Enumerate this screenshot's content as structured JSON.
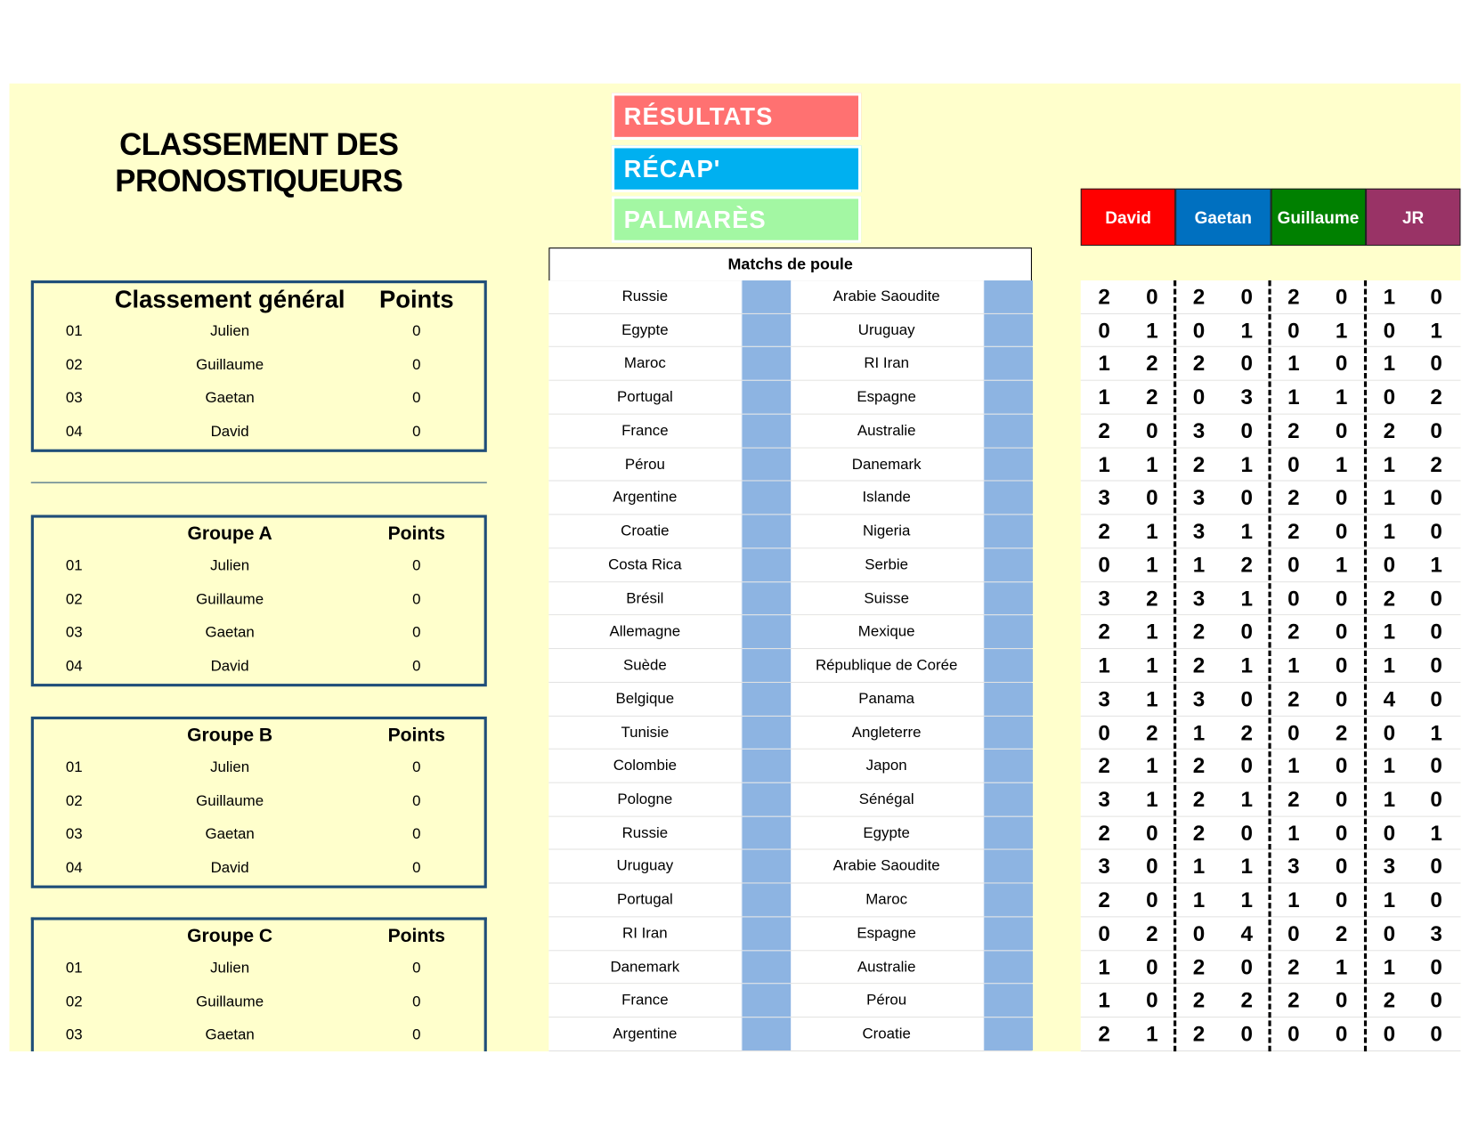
{
  "title": {
    "line1": "CLASSEMENT DES",
    "line2": "PRONOSTIQUEURS"
  },
  "nav": [
    {
      "label": "RÉSULTATS",
      "color": "#FF7171"
    },
    {
      "label": "RÉCAP'",
      "color": "#00B0F0"
    },
    {
      "label": "PALMARÈS",
      "color": "#A3F7A3"
    }
  ],
  "rankings": [
    {
      "title": "Classement général",
      "points_label": "Points",
      "rows": [
        {
          "rank": "01",
          "name": "Julien",
          "points": "0"
        },
        {
          "rank": "02",
          "name": "Guillaume",
          "points": "0"
        },
        {
          "rank": "03",
          "name": "Gaetan",
          "points": "0"
        },
        {
          "rank": "04",
          "name": "David",
          "points": "0"
        }
      ]
    },
    {
      "title": "Groupe A",
      "points_label": "Points",
      "rows": [
        {
          "rank": "01",
          "name": "Julien",
          "points": "0"
        },
        {
          "rank": "02",
          "name": "Guillaume",
          "points": "0"
        },
        {
          "rank": "03",
          "name": "Gaetan",
          "points": "0"
        },
        {
          "rank": "04",
          "name": "David",
          "points": "0"
        }
      ]
    },
    {
      "title": "Groupe B",
      "points_label": "Points",
      "rows": [
        {
          "rank": "01",
          "name": "Julien",
          "points": "0"
        },
        {
          "rank": "02",
          "name": "Guillaume",
          "points": "0"
        },
        {
          "rank": "03",
          "name": "Gaetan",
          "points": "0"
        },
        {
          "rank": "04",
          "name": "David",
          "points": "0"
        }
      ]
    },
    {
      "title": "Groupe C",
      "points_label": "Points",
      "rows": [
        {
          "rank": "01",
          "name": "Julien",
          "points": "0"
        },
        {
          "rank": "02",
          "name": "Guillaume",
          "points": "0"
        },
        {
          "rank": "03",
          "name": "Gaetan",
          "points": "0"
        }
      ]
    }
  ],
  "matches_header": "Matchs de poule",
  "players": [
    {
      "name": "David",
      "color": "#FF0000"
    },
    {
      "name": "Gaetan",
      "color": "#0070C0"
    },
    {
      "name": "Guillaume",
      "color": "#008000"
    },
    {
      "name": "JR",
      "color": "#993366"
    }
  ],
  "matches": [
    {
      "home": "Russie",
      "away": "Arabie Saoudite",
      "predictions": [
        [
          2,
          0
        ],
        [
          2,
          0
        ],
        [
          2,
          0
        ],
        [
          1,
          0
        ]
      ]
    },
    {
      "home": "Egypte",
      "away": "Uruguay",
      "predictions": [
        [
          0,
          1
        ],
        [
          0,
          1
        ],
        [
          0,
          1
        ],
        [
          0,
          1
        ]
      ]
    },
    {
      "home": "Maroc",
      "away": "RI Iran",
      "predictions": [
        [
          1,
          2
        ],
        [
          2,
          0
        ],
        [
          1,
          0
        ],
        [
          1,
          0
        ]
      ]
    },
    {
      "home": "Portugal",
      "away": "Espagne",
      "predictions": [
        [
          1,
          2
        ],
        [
          0,
          3
        ],
        [
          1,
          1
        ],
        [
          0,
          2
        ]
      ]
    },
    {
      "home": "France",
      "away": "Australie",
      "predictions": [
        [
          2,
          0
        ],
        [
          3,
          0
        ],
        [
          2,
          0
        ],
        [
          2,
          0
        ]
      ]
    },
    {
      "home": "Pérou",
      "away": "Danemark",
      "predictions": [
        [
          1,
          1
        ],
        [
          2,
          1
        ],
        [
          0,
          1
        ],
        [
          1,
          2
        ]
      ]
    },
    {
      "home": "Argentine",
      "away": "Islande",
      "predictions": [
        [
          3,
          0
        ],
        [
          3,
          0
        ],
        [
          2,
          0
        ],
        [
          1,
          0
        ]
      ]
    },
    {
      "home": "Croatie",
      "away": "Nigeria",
      "predictions": [
        [
          2,
          1
        ],
        [
          3,
          1
        ],
        [
          2,
          0
        ],
        [
          1,
          0
        ]
      ]
    },
    {
      "home": "Costa Rica",
      "away": "Serbie",
      "predictions": [
        [
          0,
          1
        ],
        [
          1,
          2
        ],
        [
          0,
          1
        ],
        [
          0,
          1
        ]
      ]
    },
    {
      "home": "Brésil",
      "away": "Suisse",
      "predictions": [
        [
          3,
          2
        ],
        [
          3,
          1
        ],
        [
          0,
          0
        ],
        [
          2,
          0
        ]
      ]
    },
    {
      "home": "Allemagne",
      "away": "Mexique",
      "predictions": [
        [
          2,
          1
        ],
        [
          2,
          0
        ],
        [
          2,
          0
        ],
        [
          1,
          0
        ]
      ]
    },
    {
      "home": "Suède",
      "away": "République de Corée",
      "predictions": [
        [
          1,
          1
        ],
        [
          2,
          1
        ],
        [
          1,
          0
        ],
        [
          1,
          0
        ]
      ]
    },
    {
      "home": "Belgique",
      "away": "Panama",
      "predictions": [
        [
          3,
          1
        ],
        [
          3,
          0
        ],
        [
          2,
          0
        ],
        [
          4,
          0
        ]
      ]
    },
    {
      "home": "Tunisie",
      "away": "Angleterre",
      "predictions": [
        [
          0,
          2
        ],
        [
          1,
          2
        ],
        [
          0,
          2
        ],
        [
          0,
          1
        ]
      ]
    },
    {
      "home": "Colombie",
      "away": "Japon",
      "predictions": [
        [
          2,
          1
        ],
        [
          2,
          0
        ],
        [
          1,
          0
        ],
        [
          1,
          0
        ]
      ]
    },
    {
      "home": "Pologne",
      "away": "Sénégal",
      "predictions": [
        [
          3,
          1
        ],
        [
          2,
          1
        ],
        [
          2,
          0
        ],
        [
          1,
          0
        ]
      ]
    },
    {
      "home": "Russie",
      "away": "Egypte",
      "predictions": [
        [
          2,
          0
        ],
        [
          2,
          0
        ],
        [
          1,
          0
        ],
        [
          0,
          1
        ]
      ]
    },
    {
      "home": "Uruguay",
      "away": "Arabie Saoudite",
      "predictions": [
        [
          3,
          0
        ],
        [
          1,
          1
        ],
        [
          3,
          0
        ],
        [
          3,
          0
        ]
      ]
    },
    {
      "home": "Portugal",
      "away": "Maroc",
      "predictions": [
        [
          2,
          0
        ],
        [
          1,
          1
        ],
        [
          1,
          0
        ],
        [
          1,
          0
        ]
      ]
    },
    {
      "home": "RI Iran",
      "away": "Espagne",
      "predictions": [
        [
          0,
          2
        ],
        [
          0,
          4
        ],
        [
          0,
          2
        ],
        [
          0,
          3
        ]
      ]
    },
    {
      "home": "Danemark",
      "away": "Australie",
      "predictions": [
        [
          1,
          0
        ],
        [
          2,
          0
        ],
        [
          2,
          1
        ],
        [
          1,
          0
        ]
      ]
    },
    {
      "home": "France",
      "away": "Pérou",
      "predictions": [
        [
          1,
          0
        ],
        [
          2,
          2
        ],
        [
          2,
          0
        ],
        [
          2,
          0
        ]
      ]
    },
    {
      "home": "Argentine",
      "away": "Croatie",
      "predictions": [
        [
          2,
          1
        ],
        [
          2,
          0
        ],
        [
          0,
          0
        ],
        [
          0,
          0
        ]
      ]
    }
  ]
}
